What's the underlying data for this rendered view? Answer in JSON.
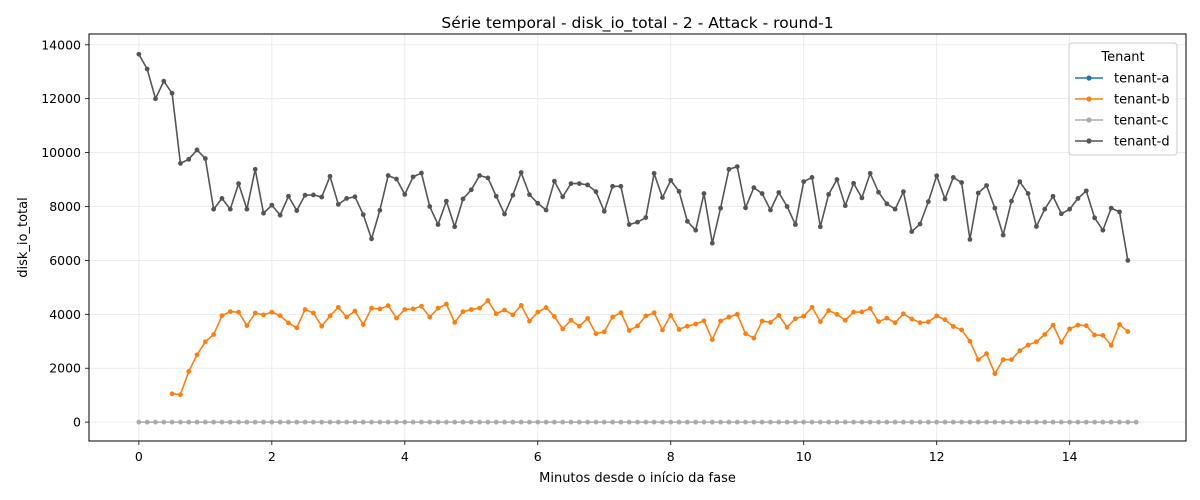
{
  "chart_data": {
    "type": "line",
    "title": "Série temporal - disk_io_total - 2 - Attack - round-1",
    "xlabel": "Minutos desde o início da fase",
    "ylabel": "disk_io_total",
    "xlim": [
      -0.75,
      15.75
    ],
    "ylim": [
      -700,
      14400
    ],
    "xticks": [
      0,
      2,
      4,
      6,
      8,
      10,
      12,
      14
    ],
    "yticks": [
      0,
      2000,
      4000,
      6000,
      8000,
      10000,
      12000,
      14000
    ],
    "grid": true,
    "legend": {
      "title": "Tenant",
      "placement": "top-right"
    },
    "x_step": 0.125,
    "series": [
      {
        "name": "tenant-a",
        "color": "#1f77b4",
        "x_start": 0,
        "values": []
      },
      {
        "name": "tenant-b",
        "color": "#ff7f0e",
        "x_start": 0.5,
        "values": [
          1050,
          1020,
          1880,
          2500,
          2980,
          3250,
          3950,
          4100,
          4080,
          3580,
          4050,
          3980,
          4080,
          3950,
          3680,
          3500,
          4180,
          4050,
          3560,
          3940,
          4260,
          3900,
          4120,
          3620,
          4230,
          4200,
          4320,
          3860,
          4180,
          4200,
          4300,
          3900,
          4230,
          4380,
          3700,
          4100,
          4180,
          4230,
          4510,
          4020,
          4160,
          3980,
          4330,
          3750,
          4080,
          4250,
          3920,
          3460,
          3780,
          3560,
          3850,
          3280,
          3350,
          3900,
          4060,
          3400,
          3570,
          3940,
          4060,
          3420,
          3960,
          3440,
          3560,
          3640,
          3760,
          3060,
          3750,
          3900,
          4000,
          3280,
          3120,
          3750,
          3700,
          3960,
          3520,
          3840,
          3930,
          4260,
          3730,
          4140,
          4000,
          3780,
          4080,
          4090,
          4220,
          3730,
          3860,
          3690,
          4020,
          3830,
          3690,
          3720,
          3940,
          3800,
          3550,
          3420,
          3000,
          2320,
          2540,
          1800,
          2320,
          2320,
          2650,
          2860,
          2980,
          3250,
          3600,
          2960,
          3460,
          3600,
          3580,
          3230,
          3220,
          2850,
          3620,
          3360
        ]
      },
      {
        "name": "tenant-c",
        "color": "#aaaaaa",
        "x_start": 0,
        "const_value": 0,
        "count": 121,
        "values": []
      },
      {
        "name": "tenant-d",
        "color": "#555555",
        "x_start": 0,
        "values": [
          13650,
          13100,
          12000,
          12650,
          12200,
          9600,
          9750,
          10100,
          9780,
          7900,
          8300,
          7900,
          8850,
          7900,
          9380,
          7750,
          8050,
          7680,
          8380,
          7850,
          8420,
          8430,
          8350,
          9120,
          8080,
          8300,
          8360,
          7700,
          6800,
          7860,
          9150,
          9020,
          8450,
          9100,
          9240,
          8000,
          7330,
          8200,
          7250,
          8280,
          8620,
          9150,
          9060,
          8380,
          7720,
          8420,
          9260,
          8440,
          8120,
          7870,
          8940,
          8360,
          8850,
          8850,
          8800,
          8550,
          7820,
          8750,
          8750,
          7330,
          7420,
          7590,
          9230,
          8330,
          8970,
          8560,
          7450,
          7120,
          8480,
          6640,
          7940,
          9380,
          9480,
          7950,
          8700,
          8480,
          7870,
          8520,
          8000,
          7330,
          8920,
          9080,
          7250,
          8450,
          9000,
          8030,
          8860,
          8320,
          9230,
          8530,
          8100,
          7900,
          8550,
          7070,
          7350,
          8180,
          9140,
          8280,
          9080,
          8890,
          6780,
          8500,
          8780,
          7940,
          6940,
          8200,
          8920,
          8480,
          7260,
          7900,
          8380,
          7730,
          7900,
          8300,
          8580,
          7580,
          7120,
          7940,
          7800,
          6000
        ]
      }
    ]
  }
}
